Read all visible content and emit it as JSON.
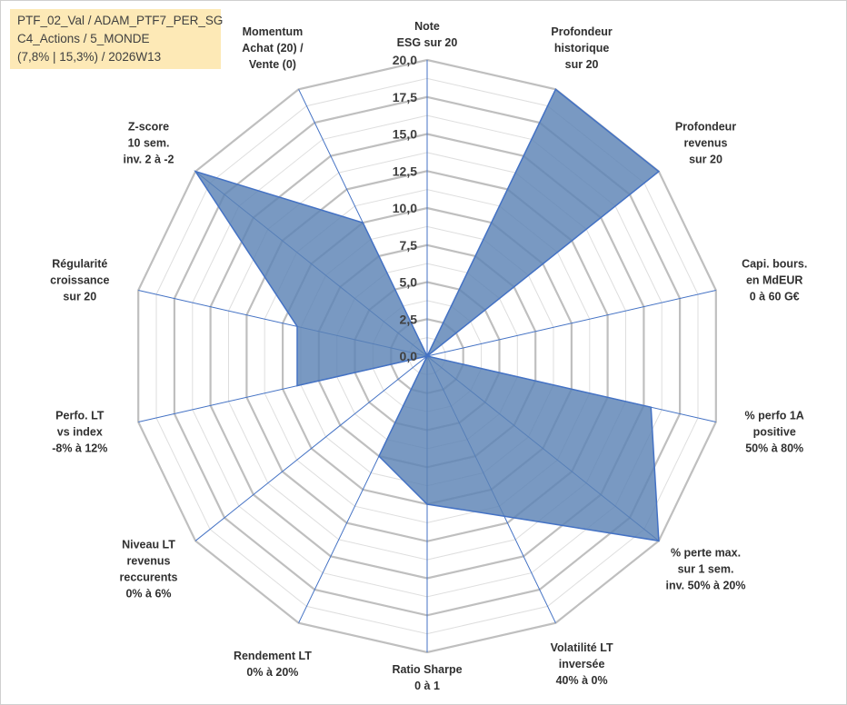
{
  "info_box": {
    "line1": "PTF_02_Val / ADAM_PTF7_PER_SG",
    "line2": "C4_Actions / 5_MONDE",
    "line3": "(7,8% | 15,3%) / 2026W13"
  },
  "colors": {
    "series_fill": "#5b82b5",
    "series_line": "#4472c4",
    "grid_major": "#bfbfbf",
    "grid_minor": "#dedede",
    "info_box_bg": "#fde9b6"
  },
  "chart_data": {
    "type": "radar",
    "title": "",
    "rmin": 0,
    "rmax": 20,
    "major_step": 2.5,
    "minor_step": 1.25,
    "tick_labels": [
      "0,0",
      "2,5",
      "5,0",
      "7,5",
      "10,0",
      "12,5",
      "15,0",
      "17,5",
      "20,0"
    ],
    "categories": [
      [
        "Note",
        "ESG sur 20"
      ],
      [
        "Profondeur",
        "historique",
        "sur 20"
      ],
      [
        "Profondeur",
        "revenus",
        "sur 20"
      ],
      [
        "Capi. bours.",
        "en MdEUR",
        "0 à 60 G€"
      ],
      [
        "% perfo 1A",
        "positive",
        "50% à 80%"
      ],
      [
        "% perte max.",
        "sur 1 sem.",
        "inv. 50% à 20%"
      ],
      [
        "Volatilité LT",
        "inversée",
        "40% à 0%"
      ],
      [
        "Ratio Sharpe",
        "0 à 1"
      ],
      [
        "Rendement LT",
        "0% à 20%"
      ],
      [
        "Niveau LT",
        "revenus",
        "reccurents",
        "0% à 6%"
      ],
      [
        "Perfo. LT",
        "vs index",
        "-8% à 12%"
      ],
      [
        "Régularité",
        "croissance",
        "sur 20"
      ],
      [
        "Z-score",
        "10 sem.",
        "inv. 2 à -2"
      ],
      [
        "Momentum",
        "Achat (20) /",
        "Vente (0)"
      ]
    ],
    "series": [
      {
        "name": "PTF_02_Val",
        "values": [
          0,
          20,
          20,
          0,
          15.5,
          20,
          12,
          10,
          7.5,
          0,
          9,
          9,
          20,
          10
        ]
      }
    ]
  }
}
